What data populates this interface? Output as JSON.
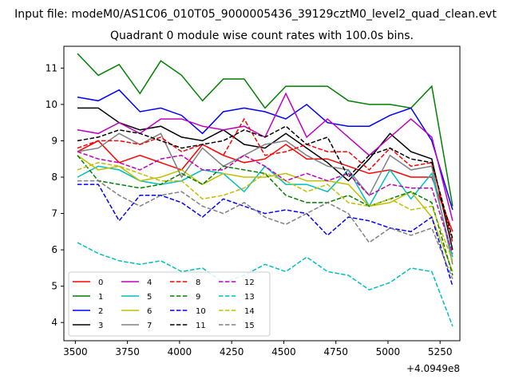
{
  "chart_data": {
    "type": "line",
    "suptitle": "Input file: modeM0/AS1C06_010T05_9000005436_39129cztM0_level2_quad_clean.evt",
    "title": "Quadrant 0 module wise count rates with 100.0s bins.",
    "xlabel": "",
    "ylabel": "",
    "x_offset_label": "+4.0949e8",
    "xlim": [
      3445,
      5345
    ],
    "ylim": [
      3.5,
      11.6
    ],
    "xticks": [
      3500,
      3750,
      4000,
      4250,
      4500,
      4750,
      5000,
      5250
    ],
    "yticks": [
      4,
      5,
      6,
      7,
      8,
      9,
      10,
      11
    ],
    "grid": false,
    "legend_position": "lower-left",
    "x": [
      3510,
      3610,
      3710,
      3810,
      3910,
      4010,
      4110,
      4210,
      4310,
      4410,
      4510,
      4610,
      4710,
      4810,
      4910,
      5010,
      5110,
      5210,
      5310
    ],
    "series": [
      {
        "name": "0",
        "color": "#ff0000",
        "dash": "solid",
        "values": [
          8.7,
          9.0,
          8.4,
          8.6,
          8.4,
          8.2,
          8.9,
          8.6,
          8.4,
          8.5,
          8.9,
          8.5,
          8.5,
          8.3,
          8.1,
          8.2,
          8.0,
          8.0,
          6.5
        ]
      },
      {
        "name": "1",
        "color": "#008000",
        "dash": "solid",
        "values": [
          11.4,
          10.8,
          11.1,
          10.3,
          11.2,
          10.8,
          10.1,
          10.7,
          10.7,
          9.9,
          10.5,
          10.5,
          10.5,
          10.1,
          10.0,
          10.0,
          9.9,
          10.5,
          7.2
        ]
      },
      {
        "name": "2",
        "color": "#0000ff",
        "dash": "solid",
        "values": [
          10.2,
          10.1,
          10.4,
          9.8,
          9.9,
          9.7,
          9.2,
          9.8,
          9.9,
          9.8,
          9.6,
          10.0,
          9.5,
          9.4,
          9.4,
          9.7,
          9.9,
          9.0,
          7.1
        ]
      },
      {
        "name": "3",
        "color": "#000000",
        "dash": "solid",
        "values": [
          9.9,
          9.9,
          9.5,
          9.3,
          9.4,
          9.1,
          9.0,
          9.3,
          8.9,
          8.8,
          9.2,
          8.8,
          8.4,
          7.9,
          8.5,
          9.2,
          8.7,
          8.5,
          6.0
        ]
      },
      {
        "name": "4",
        "color": "#bf00bf",
        "dash": "solid",
        "values": [
          9.3,
          9.2,
          9.5,
          9.2,
          9.6,
          9.6,
          9.4,
          9.3,
          9.4,
          9.1,
          10.3,
          9.1,
          9.6,
          9.1,
          8.6,
          9.1,
          9.6,
          9.1,
          6.8
        ]
      },
      {
        "name": "5",
        "color": "#00bfbf",
        "dash": "solid",
        "values": [
          8.0,
          8.3,
          8.2,
          7.9,
          7.8,
          7.9,
          8.2,
          8.1,
          7.6,
          8.3,
          7.8,
          7.8,
          7.6,
          8.2,
          7.2,
          8.2,
          7.4,
          8.1,
          5.8
        ]
      },
      {
        "name": "6",
        "color": "#bfbf00",
        "dash": "solid",
        "values": [
          8.6,
          8.2,
          8.3,
          7.9,
          8.0,
          8.2,
          7.8,
          8.1,
          8.0,
          8.0,
          8.1,
          7.9,
          7.9,
          7.8,
          7.2,
          7.3,
          7.6,
          6.9,
          5.4
        ]
      },
      {
        "name": "7",
        "color": "#808080",
        "dash": "solid",
        "values": [
          8.7,
          8.8,
          9.2,
          8.9,
          9.2,
          8.0,
          8.8,
          8.3,
          8.6,
          8.9,
          9.0,
          8.6,
          8.3,
          8.2,
          7.5,
          8.6,
          8.2,
          8.3,
          5.6
        ]
      },
      {
        "name": "8",
        "color": "#ff0000",
        "dash": "dashed",
        "values": [
          8.8,
          9.0,
          9.0,
          8.9,
          9.1,
          8.7,
          8.9,
          8.6,
          9.6,
          8.6,
          8.7,
          8.9,
          8.7,
          8.7,
          8.2,
          8.8,
          8.3,
          8.4,
          6.2
        ]
      },
      {
        "name": "9",
        "color": "#008000",
        "dash": "dashed",
        "values": [
          8.6,
          7.9,
          7.8,
          7.7,
          7.8,
          8.1,
          7.8,
          8.3,
          8.2,
          8.1,
          7.5,
          7.3,
          7.3,
          7.5,
          7.2,
          7.4,
          7.6,
          7.3,
          5.3
        ]
      },
      {
        "name": "10",
        "color": "#0000ff",
        "dash": "dashed",
        "values": [
          7.8,
          7.8,
          6.8,
          7.5,
          7.5,
          7.3,
          6.9,
          7.4,
          7.2,
          7.0,
          7.1,
          7.0,
          6.4,
          6.9,
          6.8,
          6.6,
          6.5,
          6.9,
          5.0
        ]
      },
      {
        "name": "11",
        "color": "#000000",
        "dash": "dashed",
        "values": [
          9.0,
          9.1,
          9.3,
          9.2,
          9.0,
          8.8,
          8.9,
          9.0,
          9.3,
          9.1,
          9.4,
          8.9,
          9.1,
          8.0,
          8.6,
          8.8,
          8.5,
          8.4,
          6.3
        ]
      },
      {
        "name": "12",
        "color": "#bf00bf",
        "dash": "dashed",
        "values": [
          8.7,
          8.5,
          8.4,
          8.2,
          8.5,
          8.6,
          8.2,
          8.2,
          8.6,
          8.3,
          7.9,
          8.1,
          7.9,
          8.1,
          7.5,
          7.8,
          7.7,
          7.7,
          5.9
        ]
      },
      {
        "name": "13",
        "color": "#00bfbf",
        "dash": "dashed",
        "values": [
          6.2,
          5.9,
          5.7,
          5.6,
          5.7,
          5.4,
          5.5,
          5.1,
          5.3,
          5.6,
          5.4,
          5.8,
          5.4,
          5.3,
          4.9,
          5.1,
          5.5,
          5.4,
          3.9
        ]
      },
      {
        "name": "14",
        "color": "#bfbf00",
        "dash": "dashed",
        "values": [
          8.2,
          8.4,
          8.3,
          8.1,
          7.9,
          7.9,
          7.4,
          7.5,
          7.7,
          8.1,
          7.9,
          7.6,
          7.8,
          7.3,
          7.2,
          7.4,
          7.1,
          7.2,
          5.7
        ]
      },
      {
        "name": "15",
        "color": "#808080",
        "dash": "dashed",
        "values": [
          7.9,
          7.9,
          7.5,
          7.2,
          7.5,
          7.6,
          7.2,
          7.0,
          7.3,
          6.9,
          6.7,
          7.0,
          7.3,
          7.0,
          6.2,
          6.6,
          6.4,
          6.6,
          5.2
        ]
      }
    ]
  }
}
